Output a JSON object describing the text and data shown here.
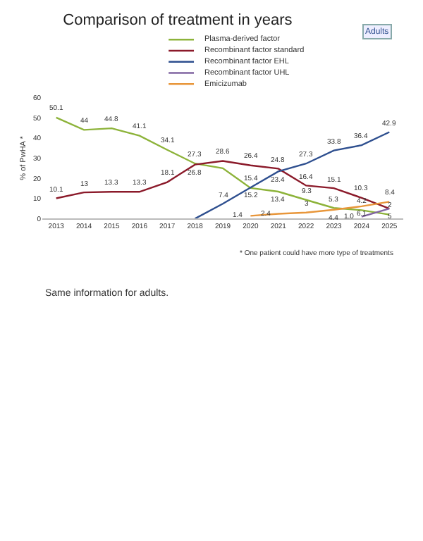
{
  "chart_data": {
    "type": "line",
    "title": "Comparison of treatment in years",
    "subtitle": "Adults",
    "ylabel": "% of PwHA *",
    "categories": [
      "2013",
      "2014",
      "2015",
      "2016",
      "2017",
      "2018",
      "2019",
      "2020",
      "2021",
      "2022",
      "2023",
      "2024",
      "2025"
    ],
    "ylim": [
      0,
      60
    ],
    "yticks": [
      0,
      10,
      20,
      30,
      40,
      50,
      60
    ],
    "legend": "top",
    "marker": "none",
    "line_style": "solid",
    "series": [
      {
        "name": "Plasma-derived factor",
        "color": "#8db33a",
        "values": [
          50.1,
          44,
          44.8,
          41.1,
          34.1,
          27.3,
          25,
          15.2,
          13.4,
          9.3,
          5.3,
          4.2,
          2
        ],
        "value_labels": [
          "50.1",
          "44",
          "44.8",
          "41.1",
          "34.1",
          "27.3",
          null,
          "15.2",
          "13.4",
          "9.3",
          "5.3",
          "4.2",
          "2"
        ]
      },
      {
        "name": "Recombinant factor standard",
        "color": "#8b1a2a",
        "values": [
          10.1,
          13,
          13.3,
          13.3,
          18.1,
          26.8,
          28.6,
          26.4,
          24.8,
          16.4,
          15.1,
          10.3,
          5
        ],
        "value_labels": [
          "10.1",
          "13",
          "13.3",
          "13.3",
          "18.1",
          "26.8",
          "28.6",
          "26.4",
          "24.8",
          "16.4",
          "15.1",
          "10.3",
          "5"
        ]
      },
      {
        "name": "Recombinant factor EHL",
        "color": "#2e4f8f",
        "values": [
          null,
          null,
          null,
          null,
          null,
          0,
          7.4,
          15.4,
          23.4,
          27.3,
          33.8,
          36.4,
          42.9
        ],
        "value_labels": [
          null,
          null,
          null,
          null,
          null,
          null,
          "7.4",
          "15.4",
          "23.4",
          "27.3",
          "33.8",
          "36.4",
          "42.9"
        ]
      },
      {
        "name": "Recombinant factor UHL",
        "color": "#8064a2",
        "values": [
          null,
          null,
          null,
          null,
          null,
          null,
          null,
          null,
          null,
          null,
          null,
          1.0,
          5
        ],
        "value_labels": [
          null,
          null,
          null,
          null,
          null,
          null,
          null,
          null,
          null,
          null,
          null,
          "1.0",
          null
        ]
      },
      {
        "name": "Emicizumab",
        "color": "#e8963a",
        "values": [
          null,
          null,
          null,
          null,
          null,
          null,
          null,
          1.4,
          2.4,
          3,
          4.4,
          6.1,
          8.4
        ],
        "value_labels": [
          null,
          null,
          null,
          null,
          null,
          null,
          null,
          "1.4",
          "2.4",
          "3",
          "4.4",
          "6.1",
          "8.4"
        ]
      }
    ],
    "annotations": [
      "* One patient could have more type of treatments",
      "Same information for adults."
    ]
  }
}
